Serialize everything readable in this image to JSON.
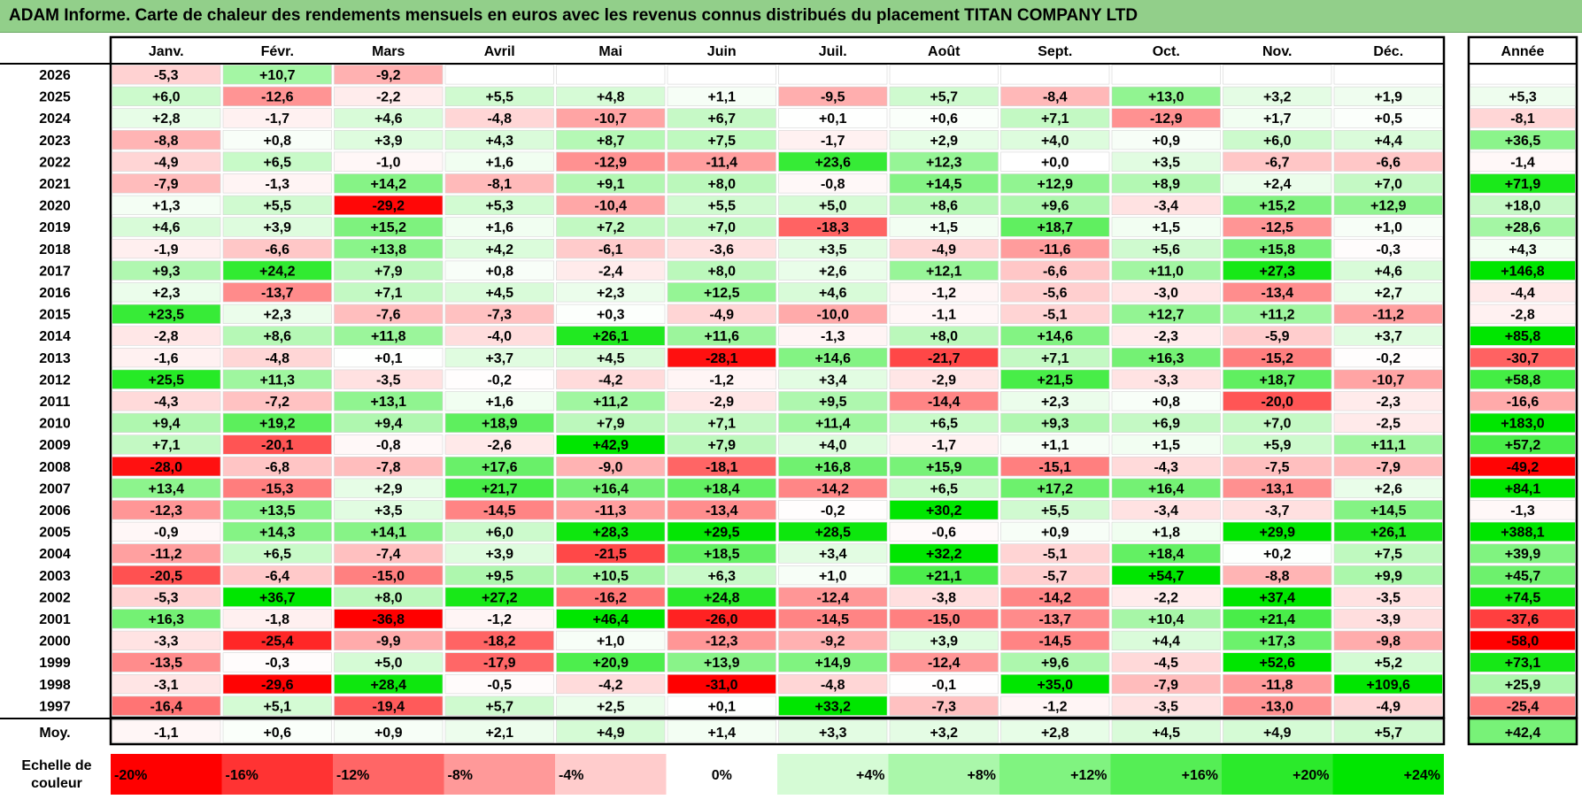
{
  "title": "ADAM Informe. Carte de chaleur des rendements mensuels en euros avec les revenus connus distribués du placement TITAN COMPANY LTD",
  "chart_data": {
    "type": "heatmap",
    "title": "ADAM Informe. Carte de chaleur des rendements mensuels en euros avec les revenus connus distribués du placement TITAN COMPANY LTD",
    "months": [
      "Janv.",
      "Févr.",
      "Mars",
      "Avril",
      "Mai",
      "Juin",
      "Juil.",
      "Août",
      "Sept.",
      "Oct.",
      "Nov.",
      "Déc."
    ],
    "year_col_label": "Année",
    "rows": [
      {
        "year": "2026",
        "m": [
          "-5,3",
          "+10,7",
          "-9,2",
          "",
          "",
          "",
          "",
          "",
          "",
          "",
          "",
          ""
        ],
        "y": ""
      },
      {
        "year": "2025",
        "m": [
          "+6,0",
          "-12,6",
          "-2,2",
          "+5,5",
          "+4,8",
          "+1,1",
          "-9,5",
          "+5,7",
          "-8,4",
          "+13,0",
          "+3,2",
          "+1,9"
        ],
        "y": "+5,3"
      },
      {
        "year": "2024",
        "m": [
          "+2,8",
          "-1,7",
          "+4,6",
          "-4,8",
          "-10,7",
          "+6,7",
          "+0,1",
          "+0,6",
          "+7,1",
          "-12,9",
          "+1,7",
          "+0,5"
        ],
        "y": "-8,1"
      },
      {
        "year": "2023",
        "m": [
          "-8,8",
          "+0,8",
          "+3,9",
          "+4,3",
          "+8,7",
          "+7,5",
          "-1,7",
          "+2,9",
          "+4,0",
          "+0,9",
          "+6,0",
          "+4,4"
        ],
        "y": "+36,5"
      },
      {
        "year": "2022",
        "m": [
          "-4,9",
          "+6,5",
          "-1,0",
          "+1,6",
          "-12,9",
          "-11,4",
          "+23,6",
          "+12,3",
          "+0,0",
          "+3,5",
          "-6,7",
          "-6,6"
        ],
        "y": "-1,4"
      },
      {
        "year": "2021",
        "m": [
          "-7,9",
          "-1,3",
          "+14,2",
          "-8,1",
          "+9,1",
          "+8,0",
          "-0,8",
          "+14,5",
          "+12,9",
          "+8,9",
          "+2,4",
          "+7,0"
        ],
        "y": "+71,9"
      },
      {
        "year": "2020",
        "m": [
          "+1,3",
          "+5,5",
          "-29,2",
          "+5,3",
          "-10,4",
          "+5,5",
          "+5,0",
          "+8,6",
          "+9,6",
          "-3,4",
          "+15,2",
          "+12,9"
        ],
        "y": "+18,0"
      },
      {
        "year": "2019",
        "m": [
          "+4,6",
          "+3,9",
          "+15,2",
          "+1,6",
          "+7,2",
          "+7,0",
          "-18,3",
          "+1,5",
          "+18,7",
          "+1,5",
          "-12,5",
          "+1,0"
        ],
        "y": "+28,6"
      },
      {
        "year": "2018",
        "m": [
          "-1,9",
          "-6,6",
          "+13,8",
          "+4,2",
          "-6,1",
          "-3,6",
          "+3,5",
          "-4,9",
          "-11,6",
          "+5,6",
          "+15,8",
          "-0,3"
        ],
        "y": "+4,3"
      },
      {
        "year": "2017",
        "m": [
          "+9,3",
          "+24,2",
          "+7,9",
          "+0,8",
          "-2,4",
          "+8,0",
          "+2,6",
          "+12,1",
          "-6,6",
          "+11,0",
          "+27,3",
          "+4,6"
        ],
        "y": "+146,8"
      },
      {
        "year": "2016",
        "m": [
          "+2,3",
          "-13,7",
          "+7,1",
          "+4,5",
          "+2,3",
          "+12,5",
          "+4,6",
          "-1,2",
          "-5,6",
          "-3,0",
          "-13,4",
          "+2,7"
        ],
        "y": "-4,4"
      },
      {
        "year": "2015",
        "m": [
          "+23,5",
          "+2,3",
          "-7,6",
          "-7,3",
          "+0,3",
          "-4,9",
          "-10,0",
          "-1,1",
          "-5,1",
          "+12,7",
          "+11,2",
          "-11,2"
        ],
        "y": "-2,8"
      },
      {
        "year": "2014",
        "m": [
          "-2,8",
          "+8,6",
          "+11,8",
          "-4,0",
          "+26,1",
          "+11,6",
          "-1,3",
          "+8,0",
          "+14,6",
          "-2,3",
          "-5,9",
          "+3,7"
        ],
        "y": "+85,8"
      },
      {
        "year": "2013",
        "m": [
          "-1,6",
          "-4,8",
          "+0,1",
          "+3,7",
          "+4,5",
          "-28,1",
          "+14,6",
          "-21,7",
          "+7,1",
          "+16,3",
          "-15,2",
          "-0,2"
        ],
        "y": "-30,7"
      },
      {
        "year": "2012",
        "m": [
          "+25,5",
          "+11,3",
          "-3,5",
          "-0,2",
          "-4,2",
          "-1,2",
          "+3,4",
          "-2,9",
          "+21,5",
          "-3,3",
          "+18,7",
          "-10,7"
        ],
        "y": "+58,8"
      },
      {
        "year": "2011",
        "m": [
          "-4,3",
          "-7,2",
          "+13,1",
          "+1,6",
          "+11,2",
          "-2,9",
          "+9,5",
          "-14,4",
          "+2,3",
          "+0,8",
          "-20,0",
          "-2,3"
        ],
        "y": "-16,6"
      },
      {
        "year": "2010",
        "m": [
          "+9,4",
          "+19,2",
          "+9,4",
          "+18,9",
          "+7,9",
          "+7,1",
          "+11,4",
          "+6,5",
          "+9,3",
          "+6,9",
          "+7,0",
          "-2,5"
        ],
        "y": "+183,0"
      },
      {
        "year": "2009",
        "m": [
          "+7,1",
          "-20,1",
          "-0,8",
          "-2,6",
          "+42,9",
          "+7,9",
          "+4,0",
          "-1,7",
          "+1,1",
          "+1,5",
          "+5,9",
          "+11,1"
        ],
        "y": "+57,2"
      },
      {
        "year": "2008",
        "m": [
          "-28,0",
          "-6,8",
          "-7,8",
          "+17,6",
          "-9,0",
          "-18,1",
          "+16,8",
          "+15,9",
          "-15,1",
          "-4,3",
          "-7,5",
          "-7,9"
        ],
        "y": "-49,2"
      },
      {
        "year": "2007",
        "m": [
          "+13,4",
          "-15,3",
          "+2,9",
          "+21,7",
          "+16,4",
          "+18,4",
          "-14,2",
          "+6,5",
          "+17,2",
          "+16,4",
          "-13,1",
          "+2,6"
        ],
        "y": "+84,1"
      },
      {
        "year": "2006",
        "m": [
          "-12,3",
          "+13,5",
          "+3,5",
          "-14,5",
          "-11,3",
          "-13,4",
          "-0,2",
          "+30,2",
          "+5,5",
          "-3,4",
          "-3,7",
          "+14,5"
        ],
        "y": "-1,3"
      },
      {
        "year": "2005",
        "m": [
          "-0,9",
          "+14,3",
          "+14,1",
          "+6,0",
          "+28,3",
          "+29,5",
          "+28,5",
          "-0,6",
          "+0,9",
          "+1,8",
          "+29,9",
          "+26,1"
        ],
        "y": "+388,1"
      },
      {
        "year": "2004",
        "m": [
          "-11,2",
          "+6,5",
          "-7,4",
          "+3,9",
          "-21,5",
          "+18,5",
          "+3,4",
          "+32,2",
          "-5,1",
          "+18,4",
          "+0,2",
          "+7,5"
        ],
        "y": "+39,9"
      },
      {
        "year": "2003",
        "m": [
          "-20,5",
          "-6,4",
          "-15,0",
          "+9,5",
          "+10,5",
          "+6,3",
          "+1,0",
          "+21,1",
          "-5,7",
          "+54,7",
          "-8,8",
          "+9,9"
        ],
        "y": "+45,7"
      },
      {
        "year": "2002",
        "m": [
          "-5,3",
          "+36,7",
          "+8,0",
          "+27,2",
          "-16,2",
          "+24,8",
          "-12,4",
          "-3,8",
          "-14,2",
          "-2,2",
          "+37,4",
          "-3,5"
        ],
        "y": "+74,5"
      },
      {
        "year": "2001",
        "m": [
          "+16,3",
          "-1,8",
          "-36,8",
          "-1,2",
          "+46,4",
          "-26,0",
          "-14,5",
          "-15,0",
          "-13,7",
          "+10,4",
          "+21,4",
          "-3,9"
        ],
        "y": "-37,6"
      },
      {
        "year": "2000",
        "m": [
          "-3,3",
          "-25,4",
          "-9,9",
          "-18,2",
          "+1,0",
          "-12,3",
          "-9,2",
          "+3,9",
          "-14,5",
          "+4,4",
          "+17,3",
          "-9,8"
        ],
        "y": "-58,0"
      },
      {
        "year": "1999",
        "m": [
          "-13,5",
          "-0,3",
          "+5,0",
          "-17,9",
          "+20,9",
          "+13,9",
          "+14,9",
          "-12,4",
          "+9,6",
          "-4,5",
          "+52,6",
          "+5,2"
        ],
        "y": "+73,1"
      },
      {
        "year": "1998",
        "m": [
          "-3,1",
          "-29,6",
          "+28,4",
          "-0,5",
          "-4,2",
          "-31,0",
          "-4,8",
          "-0,1",
          "+35,0",
          "-7,9",
          "-11,8",
          "+109,6"
        ],
        "y": "+25,9"
      },
      {
        "year": "1997",
        "m": [
          "-16,4",
          "+5,1",
          "-19,4",
          "+5,7",
          "+2,5",
          "+0,1",
          "+33,2",
          "-7,3",
          "-1,2",
          "-3,5",
          "-13,0",
          "-4,9"
        ],
        "y": "-25,4"
      }
    ],
    "average": {
      "label": "Moy.",
      "m": [
        "-1,1",
        "+0,6",
        "+0,9",
        "+2,1",
        "+4,9",
        "+1,4",
        "+3,3",
        "+3,2",
        "+2,8",
        "+4,5",
        "+4,9",
        "+5,7"
      ],
      "y": "+42,4"
    },
    "scale": {
      "label_line1": "Echelle de",
      "label_line2": "couleur",
      "items": [
        "-20%",
        "-16%",
        "-12%",
        "-8%",
        "-4%",
        "0%",
        "+4%",
        "+8%",
        "+12%",
        "+16%",
        "+20%",
        "+24%"
      ],
      "values": [
        -20,
        -16,
        -12,
        -8,
        -4,
        0,
        4,
        8,
        12,
        16,
        20,
        24
      ]
    },
    "colors": {
      "negative": "#ff0000",
      "positive": "#00e600",
      "neutral": "#ffffff"
    }
  }
}
